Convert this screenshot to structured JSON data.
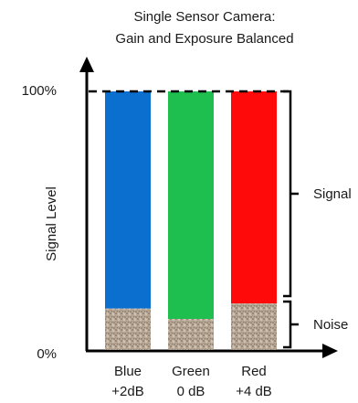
{
  "chart_data": {
    "type": "bar",
    "title": [
      "Single Sensor Camera:",
      "Gain and Exposure Balanced"
    ],
    "ylabel": "Signal Level",
    "ylim": [
      0,
      100
    ],
    "y_ticks": [
      {
        "value": 0,
        "label": "0%"
      },
      {
        "value": 100,
        "label": "100%"
      }
    ],
    "categories": [
      {
        "name": "Blue",
        "gain": "+2dB",
        "color": "#0a6fcf",
        "value": 100,
        "noise": 16
      },
      {
        "name": "Green",
        "gain": "0 dB",
        "color": "#1fbf4f",
        "value": 100,
        "noise": 12
      },
      {
        "name": "Red",
        "gain": "+4 dB",
        "color": "#ff0a0a",
        "value": 100,
        "noise": 18
      }
    ],
    "annotations": {
      "signal": "Signal",
      "noise": "Noise"
    },
    "noise_texture": "granite-speckle"
  }
}
